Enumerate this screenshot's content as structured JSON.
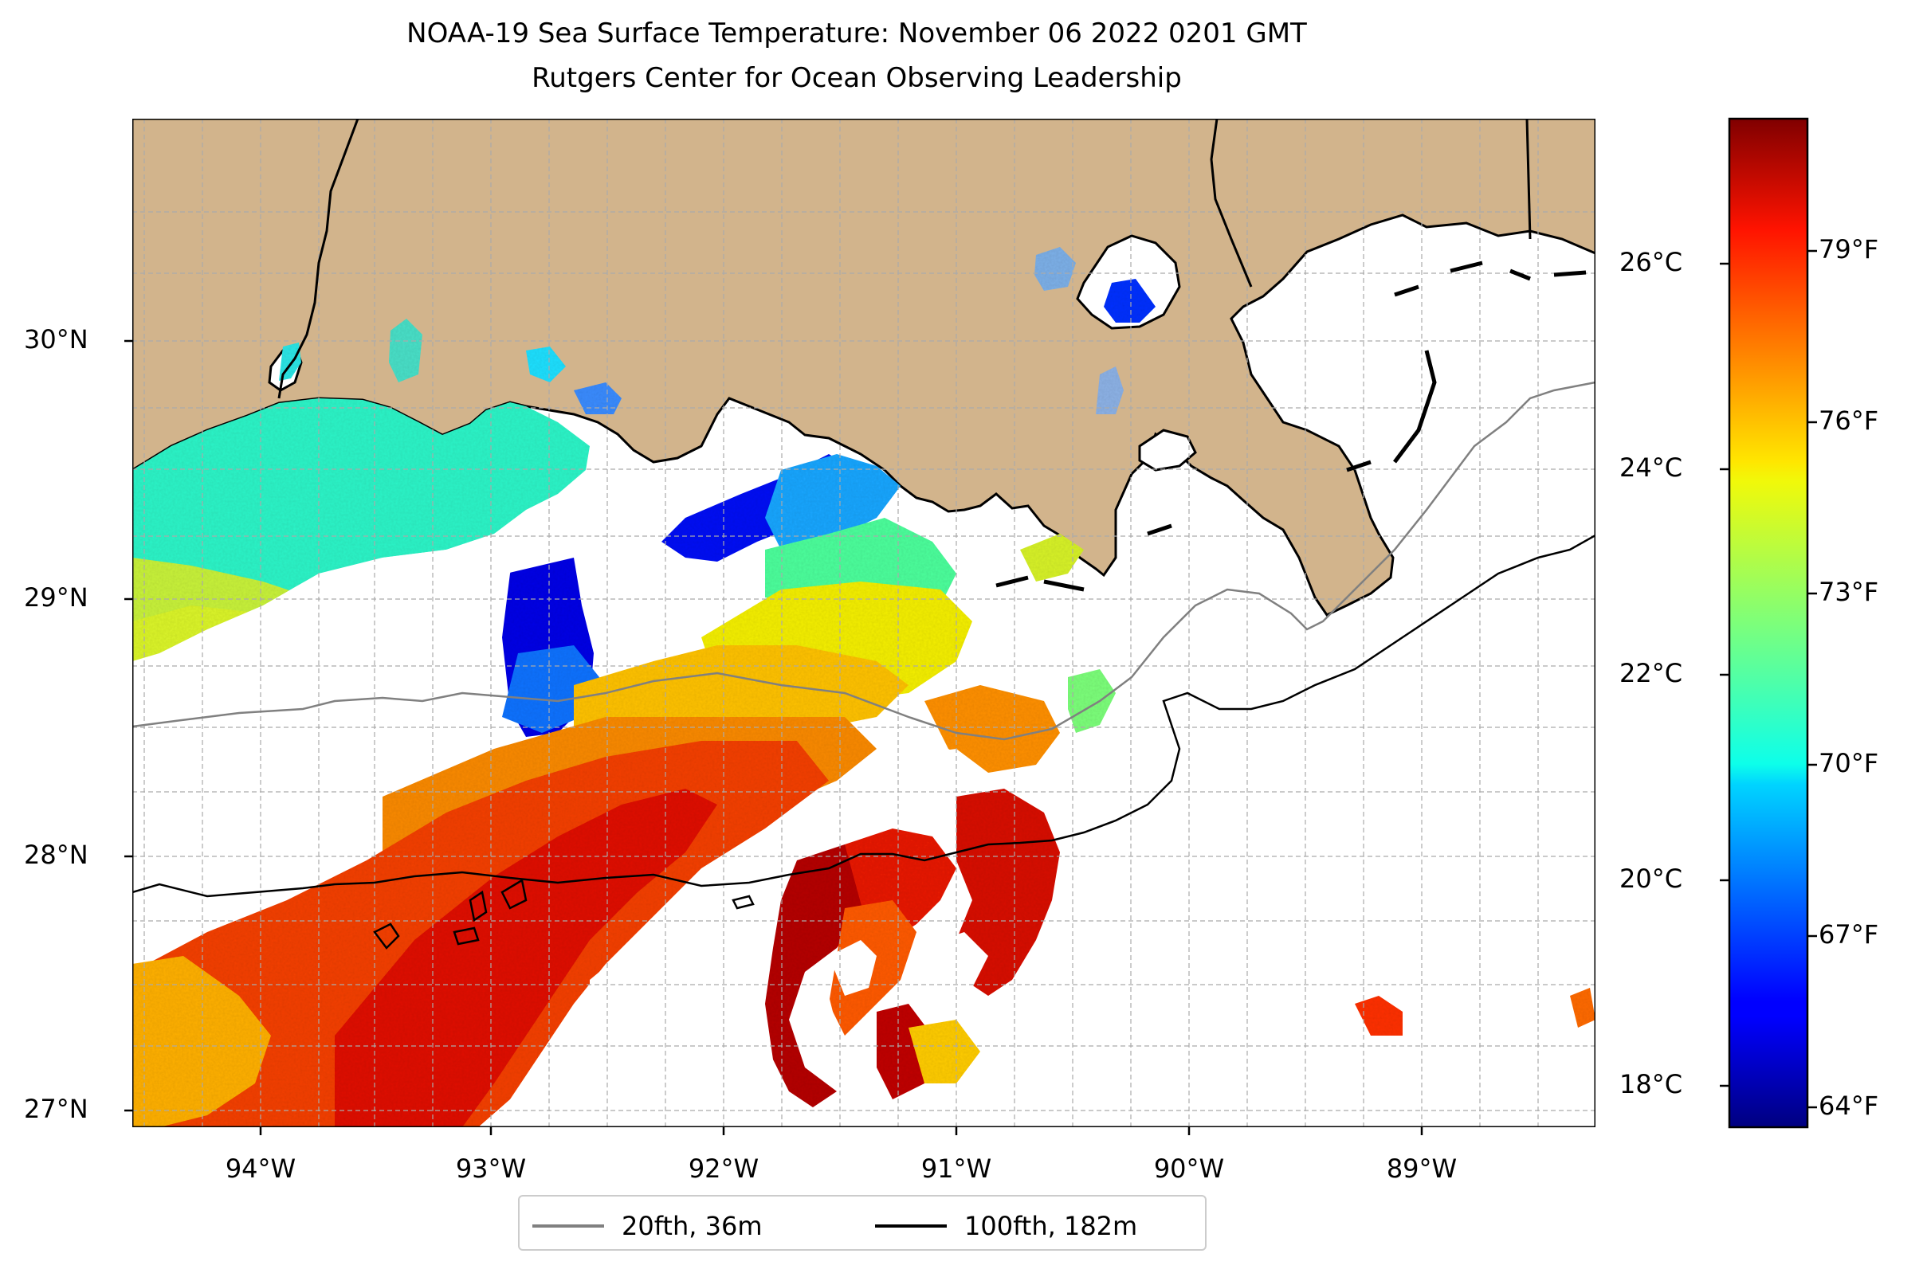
{
  "title": {
    "line1": "NOAA-19 Sea Surface Temperature: November 06 2022 0201 GMT",
    "line2": "Rutgers Center for Ocean Observing Leadership"
  },
  "map": {
    "lon_range": [
      -94.55,
      -88.2
    ],
    "lat_range": [
      26.95,
      30.85
    ],
    "land_color": "#d2b48c",
    "grid": true,
    "lat_ticks": [
      {
        "value": 27,
        "label": "27°N"
      },
      {
        "value": 28,
        "label": "28°N"
      },
      {
        "value": 29,
        "label": "29°N"
      },
      {
        "value": 30,
        "label": "30°N"
      }
    ],
    "lon_ticks": [
      {
        "value": -94,
        "label": "94°W"
      },
      {
        "value": -93,
        "label": "93°W"
      },
      {
        "value": -92,
        "label": "92°W"
      },
      {
        "value": -91,
        "label": "91°W"
      },
      {
        "value": -90,
        "label": "90°W"
      },
      {
        "value": -89,
        "label": "89°W"
      }
    ]
  },
  "colorbar": {
    "colormap": "jet",
    "range_c": [
      17.6,
      27.4
    ],
    "celsius_ticks": [
      {
        "value": 18,
        "label": "18°C"
      },
      {
        "value": 20,
        "label": "20°C"
      },
      {
        "value": 22,
        "label": "22°C"
      },
      {
        "value": 24,
        "label": "24°C"
      },
      {
        "value": 26,
        "label": "26°C"
      }
    ],
    "fahrenheit_ticks": [
      {
        "value": 64,
        "label": "64°F"
      },
      {
        "value": 67,
        "label": "67°F"
      },
      {
        "value": 70,
        "label": "70°F"
      },
      {
        "value": 73,
        "label": "73°F"
      },
      {
        "value": 76,
        "label": "76°F"
      },
      {
        "value": 79,
        "label": "79°F"
      }
    ]
  },
  "legend": {
    "items": [
      {
        "label": "20fth, 36m",
        "color": "#808080"
      },
      {
        "label": "100fth, 182m",
        "color": "#000000"
      }
    ]
  }
}
